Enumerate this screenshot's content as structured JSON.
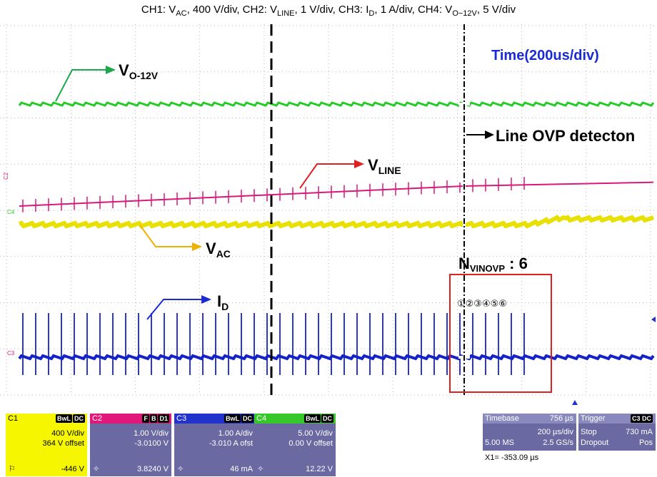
{
  "caption": {
    "p1": "CH1: V",
    "s1": "AC",
    "p2": ", 400 V/div, CH2: V",
    "s2": "LINE",
    "p3": ", 1 V/div, CH3: I",
    "s3": "D",
    "p4": ", 1 A/div, CH4: V",
    "s4": "O−12V",
    "p5": ", 5 V/div"
  },
  "annotations": {
    "time": "Time(200us/div)",
    "vo_main": "V",
    "vo_sub": "O-12V",
    "vline_main": "V",
    "vline_sub": "LINE",
    "vac_main": "V",
    "vac_sub": "AC",
    "id_main": "I",
    "id_sub": "D",
    "ovp": "Line OVP detecton",
    "nvinovp_main": "N",
    "nvinovp_sub": "VINOVP",
    "nvinovp_val": " : 6",
    "pulses": "①②③④⑤⑥"
  },
  "channel_markers": {
    "c2": "C2",
    "c4": "C4",
    "c3": "C3"
  },
  "colors": {
    "ch1": "#e8e000",
    "ch2": "#d8187a",
    "ch3": "#1422c8",
    "ch4": "#22cc22",
    "annotation_text": "#1a2bd6",
    "highlight_box": "#e02020"
  },
  "channels": [
    {
      "name": "C1",
      "tags": [
        "BwL",
        "DC"
      ],
      "scale": "400 V/div",
      "offset": "364 V offset",
      "reading": "-446 V"
    },
    {
      "name": "C2",
      "tags": [
        "F",
        "B",
        "D1"
      ],
      "scale": "1.00 V/div",
      "offset": "-3.0100 V",
      "reading": "3.8240 V"
    },
    {
      "name": "C3",
      "tags": [
        "BwL",
        "DC"
      ],
      "scale": "1.00 A/div",
      "offset": "-3.010 A ofst",
      "reading": "46 mA"
    },
    {
      "name": "C4",
      "tags": [
        "BwL",
        "DC"
      ],
      "scale": "5.00 V/div",
      "offset": "0.00 V offset",
      "reading": "12.22 V"
    }
  ],
  "timebase": {
    "label": "Timebase",
    "value": "756 µs",
    "div": "200 µs/div",
    "samples": "5.00 MS",
    "rate": "2.5 GS/s"
  },
  "trigger": {
    "label": "Trigger",
    "tag": "C3 DC",
    "mode": "Stop",
    "level": "730 mA",
    "type": "Dropout",
    "slope": "Pos"
  },
  "cursor": "X1=  -353.09 µs"
}
